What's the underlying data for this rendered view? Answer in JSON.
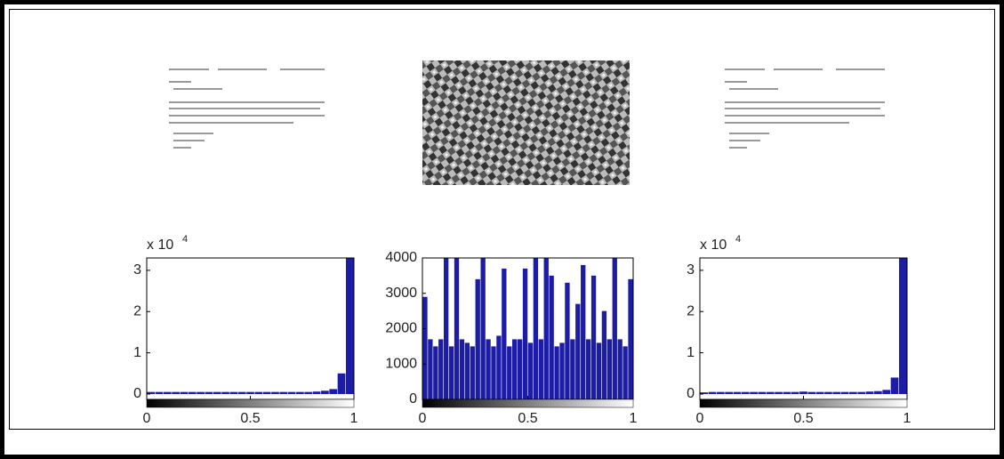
{
  "chart_data": [
    {
      "type": "histogram",
      "color": "#1c1ca6",
      "y_scale_base": "x 10",
      "y_scale_exponent": "4",
      "bins": [
        0,
        0.04,
        0.08,
        0.12,
        0.16,
        0.2,
        0.24,
        0.28,
        0.32,
        0.36,
        0.4,
        0.44,
        0.48,
        0.52,
        0.56,
        0.6,
        0.64,
        0.68,
        0.72,
        0.76,
        0.8,
        0.84,
        0.88,
        0.92,
        0.96,
        1
      ],
      "counts": [
        0.05,
        0.05,
        0.05,
        0.05,
        0.05,
        0.05,
        0.05,
        0.05,
        0.05,
        0.05,
        0.05,
        0.05,
        0.05,
        0.05,
        0.05,
        0.05,
        0.05,
        0.05,
        0.05,
        0.05,
        0.06,
        0.08,
        0.12,
        0.5,
        3.3
      ],
      "xlim": [
        0,
        1
      ],
      "xticks": [
        0,
        0.5,
        1
      ],
      "ylim": [
        -0.13,
        3.3
      ],
      "yticks": [
        0,
        1,
        2,
        3
      ]
    },
    {
      "type": "histogram",
      "color": "#1c1ca6",
      "bins": [
        0,
        0.025,
        0.05,
        0.075,
        0.1,
        0.125,
        0.15,
        0.175,
        0.2,
        0.225,
        0.25,
        0.275,
        0.3,
        0.325,
        0.35,
        0.375,
        0.4,
        0.425,
        0.45,
        0.475,
        0.5,
        0.525,
        0.55,
        0.575,
        0.6,
        0.625,
        0.65,
        0.675,
        0.7,
        0.725,
        0.75,
        0.775,
        0.8,
        0.825,
        0.85,
        0.875,
        0.9,
        0.925,
        0.95,
        0.975,
        1
      ],
      "counts": [
        2900,
        1700,
        1500,
        1700,
        4000,
        1500,
        4000,
        1700,
        1600,
        1500,
        3400,
        4000,
        1700,
        1500,
        1800,
        3700,
        1500,
        1700,
        1700,
        3700,
        1600,
        4000,
        1700,
        4000,
        3500,
        1500,
        1600,
        3300,
        1700,
        2700,
        3800,
        1700,
        3500,
        1600,
        2500,
        1700,
        4000,
        1700,
        1500,
        3400
      ],
      "xlim": [
        0,
        1
      ],
      "xticks": [
        0,
        0.5,
        1
      ],
      "ylim": [
        0,
        4000
      ],
      "yticks": [
        0,
        1000,
        2000,
        3000,
        4000
      ]
    },
    {
      "type": "histogram",
      "color": "#1c1ca6",
      "y_scale_base": "x 10",
      "y_scale_exponent": "4",
      "bins": [
        0,
        0.04,
        0.08,
        0.12,
        0.16,
        0.2,
        0.24,
        0.28,
        0.32,
        0.36,
        0.4,
        0.44,
        0.48,
        0.52,
        0.56,
        0.6,
        0.64,
        0.68,
        0.72,
        0.76,
        0.8,
        0.84,
        0.88,
        0.92,
        0.96,
        1
      ],
      "counts": [
        0.04,
        0.05,
        0.05,
        0.05,
        0.05,
        0.05,
        0.05,
        0.05,
        0.05,
        0.05,
        0.05,
        0.05,
        0.06,
        0.05,
        0.05,
        0.05,
        0.05,
        0.05,
        0.05,
        0.05,
        0.06,
        0.07,
        0.1,
        0.4,
        3.3
      ],
      "xlim": [
        0,
        1
      ],
      "xticks": [
        0,
        0.5,
        1
      ],
      "ylim": [
        -0.13,
        3.3
      ],
      "yticks": [
        0,
        1,
        2,
        3
      ]
    }
  ]
}
